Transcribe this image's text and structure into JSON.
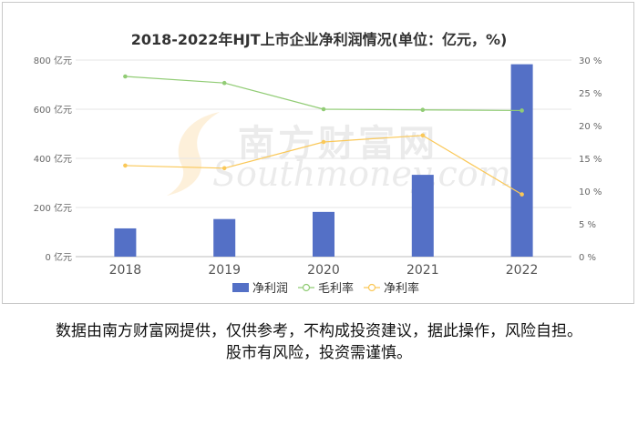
{
  "chart_data": {
    "type": "bar",
    "title": "2018-2022年HJT上市企业净利润情况(单位：亿元，%)",
    "categories": [
      "2018",
      "2019",
      "2020",
      "2021",
      "2022"
    ],
    "series": [
      {
        "name": "净利润",
        "kind": "bar",
        "axis": "left",
        "color": "#5470c6",
        "values": [
          115,
          153,
          182,
          333,
          783
        ]
      },
      {
        "name": "毛利率",
        "kind": "line",
        "axis": "right",
        "color": "#91cc75",
        "values": [
          27.5,
          26.5,
          22.5,
          22.4,
          22.3
        ]
      },
      {
        "name": "净利率",
        "kind": "line",
        "axis": "right",
        "color": "#fac858",
        "values": [
          13.9,
          13.5,
          17.5,
          18.5,
          9.5
        ]
      }
    ],
    "left_axis": {
      "ticks": [
        "0 亿元",
        "200 亿元",
        "400 亿元",
        "600 亿元",
        "800 亿元"
      ],
      "ylim": [
        0,
        800
      ]
    },
    "right_axis": {
      "ticks": [
        "0 %",
        "5 %",
        "10 %",
        "15 %",
        "20 %",
        "25 %",
        "30 %"
      ],
      "ylim": [
        0,
        30
      ]
    },
    "grid": true,
    "legend_position": "bottom"
  },
  "watermark": {
    "cn": "南方财富网",
    "en": "Southmoney.com"
  },
  "disclaimer": {
    "line1": "数据由南方财富网提供，仅供参考，不构成投资建议，据此操作，风险自担。",
    "line2": "股市有风险，投资需谨慎。"
  }
}
